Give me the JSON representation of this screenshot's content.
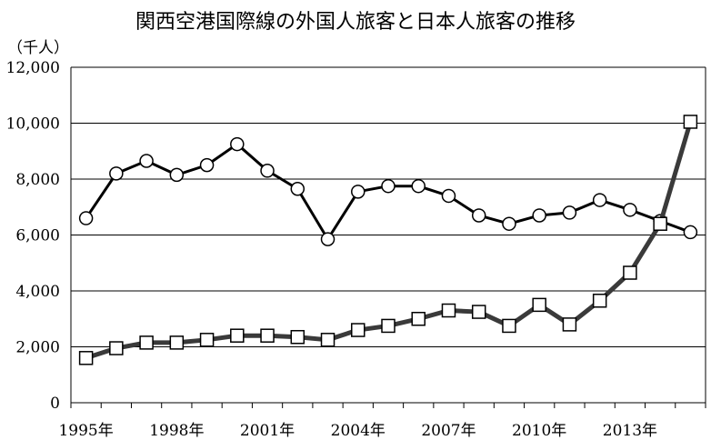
{
  "chart_data": {
    "type": "line",
    "title": "関西空港国際線の外国人旅客と日本人旅客の推移",
    "unit_label": "（千人）",
    "x": [
      1995,
      1996,
      1997,
      1998,
      1999,
      2000,
      2001,
      2002,
      2003,
      2004,
      2005,
      2006,
      2007,
      2008,
      2009,
      2010,
      2011,
      2012,
      2013,
      2014,
      2015
    ],
    "x_tick_labels": [
      "1995年",
      "1998年",
      "2001年",
      "2004年",
      "2007年",
      "2010年",
      "2013年"
    ],
    "x_tick_values": [
      1995,
      1998,
      2001,
      2004,
      2007,
      2010,
      2013
    ],
    "y_tick_labels": [
      "0",
      "2,000",
      "4,000",
      "6,000",
      "8,000",
      "10,000",
      "12,000"
    ],
    "ylim": [
      0,
      12000
    ],
    "grid": true,
    "series": [
      {
        "marker": "circle",
        "color": "#000000",
        "values": [
          6600,
          8200,
          8650,
          8150,
          8500,
          9250,
          8300,
          7650,
          5850,
          7550,
          7750,
          7750,
          7400,
          6700,
          6400,
          6700,
          6800,
          7250,
          6900,
          6500,
          6100
        ]
      },
      {
        "marker": "square",
        "color": "#3a3a3a",
        "values": [
          1600,
          1950,
          2150,
          2150,
          2250,
          2400,
          2400,
          2350,
          2250,
          2600,
          2750,
          3000,
          3300,
          3250,
          2750,
          3500,
          2800,
          3650,
          4650,
          6400,
          10050
        ]
      }
    ]
  }
}
